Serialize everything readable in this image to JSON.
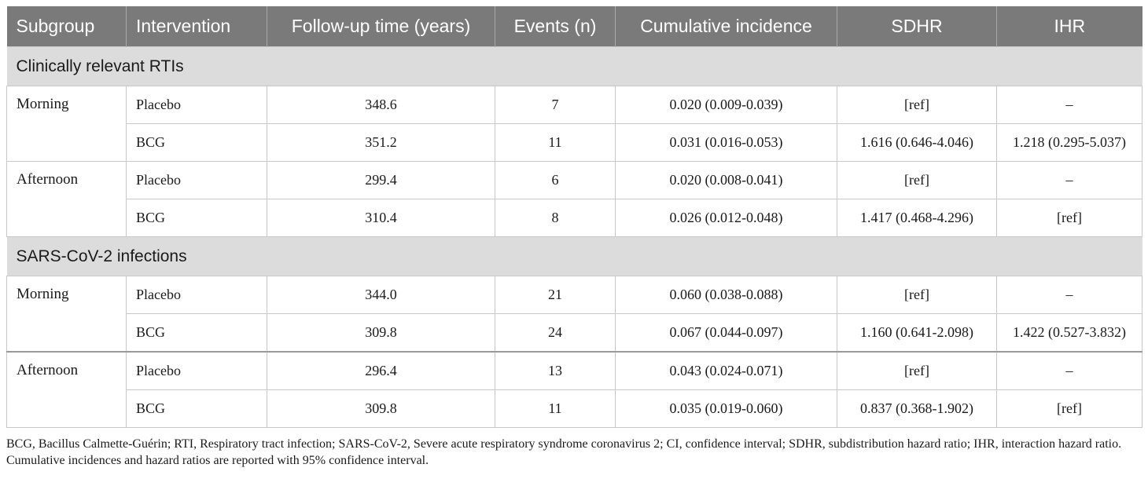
{
  "table": {
    "headers": [
      "Subgroup",
      "Intervention",
      "Follow-up time (years)",
      "Events (n)",
      "Cumulative incidence",
      "SDHR",
      "IHR"
    ],
    "sections": [
      {
        "title": "Clinically relevant RTIs",
        "groups": [
          {
            "subgroup": "Morning",
            "rows": [
              {
                "intervention": "Placebo",
                "followup": "348.6",
                "events": "7",
                "incidence": "0.020 (0.009-0.039)",
                "sdhr": "[ref]",
                "ihr": "–"
              },
              {
                "intervention": "BCG",
                "followup": "351.2",
                "events": "11",
                "incidence": "0.031 (0.016-0.053)",
                "sdhr": "1.616 (0.646-4.046)",
                "ihr": "1.218 (0.295-5.037)"
              }
            ]
          },
          {
            "subgroup": "Afternoon",
            "rows": [
              {
                "intervention": "Placebo",
                "followup": "299.4",
                "events": "6",
                "incidence": "0.020 (0.008-0.041)",
                "sdhr": "[ref]",
                "ihr": "–"
              },
              {
                "intervention": "BCG",
                "followup": "310.4",
                "events": "8",
                "incidence": "0.026 (0.012-0.048)",
                "sdhr": "1.417 (0.468-4.296)",
                "ihr": "[ref]"
              }
            ]
          }
        ]
      },
      {
        "title": "SARS-CoV-2 infections",
        "groups": [
          {
            "subgroup": "Morning",
            "rows": [
              {
                "intervention": "Placebo",
                "followup": "344.0",
                "events": "21",
                "incidence": "0.060 (0.038-0.088)",
                "sdhr": "[ref]",
                "ihr": "–"
              },
              {
                "intervention": "BCG",
                "followup": "309.8",
                "events": "24",
                "incidence": "0.067 (0.044-0.097)",
                "sdhr": "1.160 (0.641-2.098)",
                "ihr": "1.422 (0.527-3.832)"
              }
            ]
          },
          {
            "subgroup": "Afternoon",
            "rows": [
              {
                "intervention": "Placebo",
                "followup": "296.4",
                "events": "13",
                "incidence": "0.043 (0.024-0.071)",
                "sdhr": "[ref]",
                "ihr": "–"
              },
              {
                "intervention": "BCG",
                "followup": "309.8",
                "events": "11",
                "incidence": "0.035 (0.019-0.060)",
                "sdhr": "0.837 (0.368-1.902)",
                "ihr": "[ref]"
              }
            ]
          }
        ]
      }
    ]
  },
  "footnotes": [
    "BCG, Bacillus Calmette-Guérin; RTI, Respiratory tract infection; SARS-CoV-2, Severe acute respiratory syndrome coronavirus 2; CI, confidence interval; SDHR, subdistribution hazard ratio; IHR, interaction hazard ratio.",
    "Cumulative incidences and hazard ratios are reported with 95% confidence interval."
  ]
}
